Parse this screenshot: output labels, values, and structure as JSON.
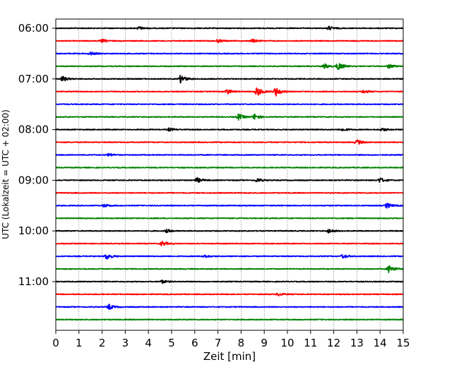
{
  "chart_data": {
    "type": "line",
    "xlabel": "Zeit  [min]",
    "ylabel": "UTC (Lokalzeit = UTC + 02:00)",
    "xlim": [
      0,
      15
    ],
    "x_ticks": [
      0,
      1,
      2,
      3,
      4,
      5,
      6,
      7,
      8,
      9,
      10,
      11,
      12,
      13,
      14,
      15
    ],
    "y_tick_labels": [
      "06:00",
      "07:00",
      "08:00",
      "09:00",
      "10:00",
      "11:00"
    ],
    "grid": "vertical dotted at each minute",
    "trace_colors": [
      "#000000",
      "#ff0000",
      "#0000ff",
      "#008000"
    ],
    "start_time": "06:00",
    "trace_interval_min": 15,
    "trace_count": 24,
    "events": [
      {
        "trace": 0,
        "minute": 3.6,
        "amp": 0.3
      },
      {
        "trace": 0,
        "minute": 11.8,
        "amp": 0.35
      },
      {
        "trace": 1,
        "minute": 2.0,
        "amp": 0.3
      },
      {
        "trace": 1,
        "minute": 7.0,
        "amp": 0.3
      },
      {
        "trace": 1,
        "minute": 8.5,
        "amp": 0.3
      },
      {
        "trace": 2,
        "minute": 1.5,
        "amp": 0.3
      },
      {
        "trace": 3,
        "minute": 11.6,
        "amp": 0.5
      },
      {
        "trace": 3,
        "minute": 12.2,
        "amp": 0.8
      },
      {
        "trace": 3,
        "minute": 14.4,
        "amp": 0.4
      },
      {
        "trace": 4,
        "minute": 0.3,
        "amp": 0.5
      },
      {
        "trace": 4,
        "minute": 5.4,
        "amp": 0.8
      },
      {
        "trace": 5,
        "minute": 7.4,
        "amp": 0.5
      },
      {
        "trace": 5,
        "minute": 8.7,
        "amp": 0.9
      },
      {
        "trace": 5,
        "minute": 9.5,
        "amp": 0.9
      },
      {
        "trace": 5,
        "minute": 13.3,
        "amp": 0.3
      },
      {
        "trace": 7,
        "minute": 7.9,
        "amp": 0.6
      },
      {
        "trace": 7,
        "minute": 8.6,
        "amp": 0.6
      },
      {
        "trace": 8,
        "minute": 4.9,
        "amp": 0.3
      },
      {
        "trace": 8,
        "minute": 12.4,
        "amp": 0.3
      },
      {
        "trace": 8,
        "minute": 14.1,
        "amp": 0.3
      },
      {
        "trace": 9,
        "minute": 13.0,
        "amp": 0.5
      },
      {
        "trace": 10,
        "minute": 2.3,
        "amp": 0.3
      },
      {
        "trace": 12,
        "minute": 6.1,
        "amp": 0.5
      },
      {
        "trace": 12,
        "minute": 8.7,
        "amp": 0.4
      },
      {
        "trace": 12,
        "minute": 14.0,
        "amp": 0.5
      },
      {
        "trace": 14,
        "minute": 2.1,
        "amp": 0.3
      },
      {
        "trace": 14,
        "minute": 14.3,
        "amp": 0.5
      },
      {
        "trace": 16,
        "minute": 4.8,
        "amp": 0.3
      },
      {
        "trace": 16,
        "minute": 11.8,
        "amp": 0.4
      },
      {
        "trace": 17,
        "minute": 4.6,
        "amp": 0.5
      },
      {
        "trace": 18,
        "minute": 2.2,
        "amp": 0.6
      },
      {
        "trace": 18,
        "minute": 6.4,
        "amp": 0.3
      },
      {
        "trace": 18,
        "minute": 12.4,
        "amp": 0.4
      },
      {
        "trace": 19,
        "minute": 14.4,
        "amp": 0.8
      },
      {
        "trace": 20,
        "minute": 4.6,
        "amp": 0.3
      },
      {
        "trace": 21,
        "minute": 9.6,
        "amp": 0.3
      },
      {
        "trace": 22,
        "minute": 2.3,
        "amp": 0.5
      }
    ]
  }
}
